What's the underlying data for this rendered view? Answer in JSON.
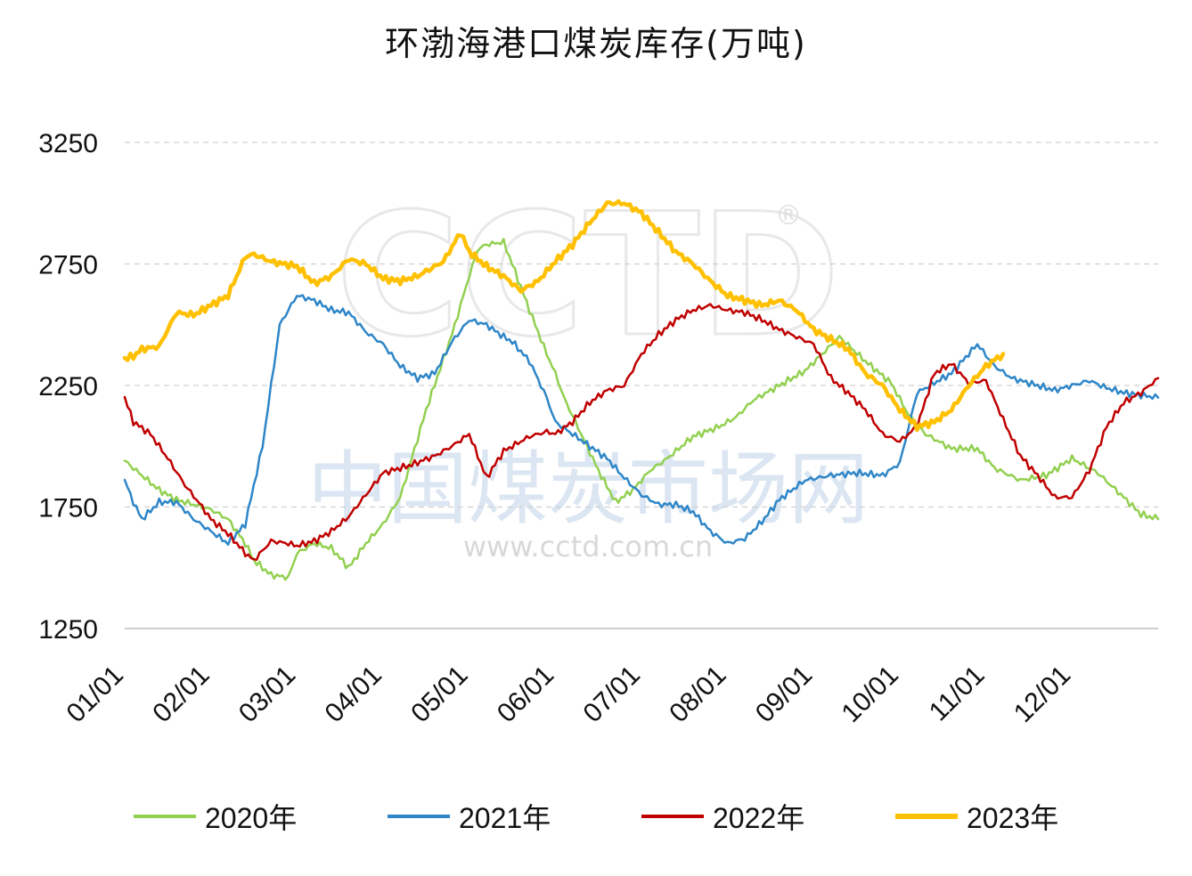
{
  "chart_data": {
    "type": "line",
    "title": "环渤海港口煤炭库存(万吨)",
    "xlabel": "",
    "ylabel": "",
    "ylim": [
      1250,
      3250
    ],
    "yticks": [
      1250,
      1750,
      2250,
      2750,
      3250
    ],
    "categories": [
      "01/01",
      "02/01",
      "03/01",
      "04/01",
      "05/01",
      "06/01",
      "07/01",
      "08/01",
      "09/01",
      "10/01",
      "11/01",
      "12/01"
    ],
    "watermark": {
      "logo": "CCTD",
      "registered": "®",
      "name": "中国煤炭市场网",
      "url": "www.cctd.com.cn"
    },
    "series": [
      {
        "name": "2020年",
        "color": "#92d050",
        "width": 2.5,
        "x": [
          0,
          0.2,
          0.4,
          0.6,
          0.8,
          1.0,
          1.2,
          1.4,
          1.5,
          1.7,
          1.9,
          2.0,
          2.2,
          2.4,
          2.6,
          2.8,
          3.0,
          3.2,
          3.5,
          3.8,
          4.0,
          4.1,
          4.2,
          4.4,
          4.5,
          4.7,
          4.9,
          5.0,
          5.1,
          5.3,
          5.5,
          5.7,
          5.9,
          6.1,
          6.3,
          6.6,
          6.9,
          7.1,
          7.3,
          7.6,
          7.9,
          8.1,
          8.3,
          8.6,
          8.9,
          9.1,
          9.3,
          9.6,
          9.9,
          10.1,
          10.4,
          10.7,
          11.0,
          11.3,
          11.6,
          11.8,
          12.0
        ],
        "y": [
          1940,
          1880,
          1820,
          1780,
          1760,
          1740,
          1700,
          1600,
          1530,
          1470,
          1460,
          1560,
          1600,
          1580,
          1500,
          1600,
          1680,
          1790,
          2150,
          2460,
          2700,
          2810,
          2830,
          2840,
          2750,
          2560,
          2380,
          2300,
          2200,
          2050,
          1900,
          1770,
          1820,
          1900,
          1950,
          2040,
          2080,
          2120,
          2190,
          2250,
          2310,
          2380,
          2450,
          2350,
          2260,
          2130,
          2050,
          1990,
          1990,
          1910,
          1860,
          1880,
          1950,
          1890,
          1790,
          1720,
          1700
        ]
      },
      {
        "name": "2021年",
        "color": "#2e86c8",
        "width": 2.5,
        "x": [
          0,
          0.1,
          0.2,
          0.4,
          0.6,
          0.8,
          1.0,
          1.2,
          1.4,
          1.6,
          1.8,
          2.0,
          2.2,
          2.4,
          2.6,
          2.8,
          3.0,
          3.2,
          3.4,
          3.6,
          3.8,
          4.0,
          4.2,
          4.4,
          4.5,
          4.7,
          4.9,
          5.0,
          5.2,
          5.4,
          5.6,
          5.8,
          6.0,
          6.2,
          6.4,
          6.6,
          6.8,
          7.0,
          7.2,
          7.4,
          7.6,
          7.9,
          8.2,
          8.5,
          8.8,
          9.0,
          9.2,
          9.4,
          9.6,
          9.9,
          10.1,
          10.3,
          10.6,
          10.8,
          11.0,
          11.2,
          11.4,
          11.6,
          11.8,
          12.0
        ],
        "y": [
          1860,
          1770,
          1700,
          1770,
          1770,
          1700,
          1650,
          1600,
          1680,
          2000,
          2500,
          2620,
          2600,
          2560,
          2550,
          2470,
          2420,
          2330,
          2280,
          2300,
          2430,
          2520,
          2500,
          2450,
          2430,
          2350,
          2200,
          2100,
          2050,
          2000,
          1950,
          1870,
          1800,
          1760,
          1760,
          1730,
          1650,
          1600,
          1620,
          1690,
          1780,
          1860,
          1880,
          1890,
          1880,
          1930,
          2220,
          2260,
          2300,
          2420,
          2330,
          2280,
          2250,
          2230,
          2250,
          2270,
          2240,
          2220,
          2210,
          2200
        ]
      },
      {
        "name": "2022年",
        "color": "#c00000",
        "width": 2.5,
        "x": [
          0,
          0.1,
          0.3,
          0.5,
          0.7,
          0.9,
          1.0,
          1.2,
          1.4,
          1.5,
          1.7,
          1.9,
          2.0,
          2.2,
          2.4,
          2.6,
          2.8,
          3.0,
          3.3,
          3.6,
          3.8,
          4.0,
          4.2,
          4.4,
          4.5,
          4.7,
          4.9,
          5.0,
          5.2,
          5.4,
          5.6,
          5.8,
          6.0,
          6.2,
          6.4,
          6.6,
          6.8,
          7.0,
          7.2,
          7.4,
          7.6,
          7.8,
          8.0,
          8.2,
          8.4,
          8.6,
          8.8,
          9.0,
          9.2,
          9.4,
          9.6,
          9.8,
          10.0,
          10.2,
          10.4,
          10.6,
          10.8,
          11.0,
          11.2,
          11.4,
          11.6,
          11.8,
          12.0
        ],
        "y": [
          2200,
          2100,
          2050,
          1950,
          1840,
          1750,
          1700,
          1640,
          1560,
          1530,
          1610,
          1600,
          1590,
          1610,
          1650,
          1710,
          1800,
          1890,
          1920,
          1960,
          2000,
          2050,
          1870,
          1980,
          2000,
          2040,
          2060,
          2050,
          2100,
          2180,
          2230,
          2250,
          2380,
          2460,
          2520,
          2560,
          2580,
          2560,
          2550,
          2520,
          2480,
          2450,
          2420,
          2280,
          2220,
          2150,
          2050,
          2020,
          2080,
          2300,
          2340,
          2260,
          2270,
          2110,
          1960,
          1880,
          1790,
          1790,
          1900,
          2080,
          2180,
          2220,
          2280
        ]
      },
      {
        "name": "2023年",
        "color": "#ffc000",
        "width": 4.5,
        "x": [
          0,
          0.1,
          0.2,
          0.4,
          0.6,
          0.8,
          1.0,
          1.2,
          1.4,
          1.5,
          1.7,
          2.0,
          2.2,
          2.4,
          2.6,
          2.8,
          3.0,
          3.2,
          3.4,
          3.5,
          3.7,
          3.9,
          4.0,
          4.2,
          4.4,
          4.6,
          4.8,
          5.0,
          5.2,
          5.4,
          5.6,
          5.8,
          6.0,
          6.2,
          6.4,
          6.6,
          6.8,
          7.0,
          7.2,
          7.4,
          7.6,
          7.8,
          8.0,
          8.2,
          8.4,
          8.6,
          8.8,
          9.0,
          9.2,
          9.4,
          9.6,
          9.8,
          10.0,
          10.2
        ],
        "y": [
          2360,
          2370,
          2400,
          2410,
          2550,
          2540,
          2580,
          2620,
          2780,
          2790,
          2760,
          2740,
          2670,
          2700,
          2770,
          2750,
          2690,
          2680,
          2700,
          2720,
          2760,
          2880,
          2800,
          2740,
          2700,
          2640,
          2680,
          2760,
          2830,
          2920,
          3000,
          3000,
          2960,
          2880,
          2800,
          2750,
          2680,
          2620,
          2600,
          2580,
          2600,
          2560,
          2480,
          2440,
          2400,
          2300,
          2250,
          2150,
          2080,
          2100,
          2150,
          2250,
          2330,
          2380
        ]
      }
    ]
  }
}
